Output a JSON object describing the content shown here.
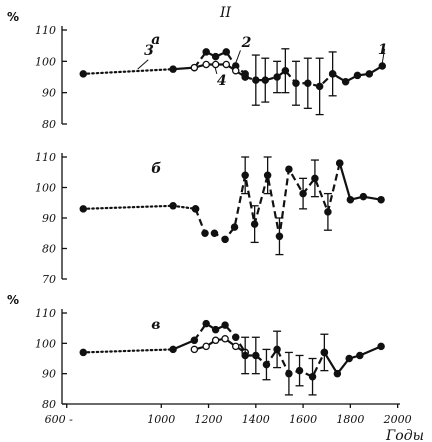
{
  "figure": {
    "title": "II",
    "x_unit": "Годы"
  },
  "chart_data": {
    "type": "line",
    "x_ticks": [
      600,
      1000,
      1200,
      1400,
      1600,
      1800,
      2000
    ],
    "x_tick_labels": [
      "600 -",
      "1000",
      "1200",
      "1400",
      "1600",
      "1800",
      "2000"
    ],
    "xlim": [
      580,
      2010
    ],
    "xlabel": "Годы",
    "ink_color": "#111111",
    "panels": [
      {
        "label": "а",
        "ylabel": "%",
        "ylim": [
          80,
          110
        ],
        "y_ticks": [
          80,
          90,
          100,
          110
        ],
        "curve_labels": [
          "1",
          "2",
          "3",
          "4"
        ],
        "series": [
          {
            "name": "3",
            "style": "dotted",
            "marker": "filled",
            "points": [
              [
                670,
                96
              ],
              [
                1050,
                97.5
              ]
            ]
          },
          {
            "name": "3 (join)",
            "style": "solid",
            "marker": "none",
            "points": [
              [
                1050,
                97.5
              ],
              [
                1140,
                98
              ]
            ]
          },
          {
            "name": "2",
            "style": "dashed",
            "marker": "filled",
            "points": [
              [
                1140,
                98
              ],
              [
                1190,
                103
              ],
              [
                1230,
                101.5
              ],
              [
                1275,
                103
              ],
              [
                1315,
                98.5
              ],
              [
                1355,
                96
              ]
            ]
          },
          {
            "name": "4",
            "style": "solid",
            "marker": "open",
            "points": [
              [
                1140,
                98
              ],
              [
                1190,
                99
              ],
              [
                1230,
                99
              ],
              [
                1275,
                99
              ],
              [
                1315,
                97
              ],
              [
                1355,
                95
              ]
            ]
          },
          {
            "name": "2 (errors)",
            "style": "dashed",
            "marker": "filled",
            "points": [
              [
                1355,
                95
              ],
              [
                1400,
                94
              ],
              [
                1440,
                94
              ],
              [
                1490,
                95
              ],
              [
                1525,
                97
              ],
              [
                1570,
                93
              ],
              [
                1620,
                93
              ],
              [
                1670,
                92
              ],
              [
                1725,
                96
              ]
            ],
            "errors": [
              null,
              8,
              7,
              5,
              7,
              7,
              8,
              9,
              7
            ]
          },
          {
            "name": "1",
            "style": "solid",
            "marker": "filled",
            "points": [
              [
                1725,
                96
              ],
              [
                1780,
                93.5
              ],
              [
                1830,
                95.5
              ],
              [
                1880,
                96
              ],
              [
                1935,
                98.5
              ]
            ]
          }
        ]
      },
      {
        "label": "б",
        "ylabel": "",
        "ylim": [
          70,
          110
        ],
        "y_ticks": [
          70,
          80,
          90,
          100,
          110
        ],
        "series": [
          {
            "name": "dotted",
            "style": "dotted",
            "marker": "filled",
            "points": [
              [
                670,
                93
              ],
              [
                1050,
                94
              ],
              [
                1145,
                93
              ]
            ]
          },
          {
            "name": "dashed",
            "style": "dashed",
            "marker": "filled",
            "points": [
              [
                1145,
                93
              ],
              [
                1185,
                85
              ],
              [
                1225,
                85
              ],
              [
                1270,
                83
              ],
              [
                1310,
                87
              ],
              [
                1355,
                104
              ],
              [
                1395,
                88
              ],
              [
                1450,
                104
              ],
              [
                1500,
                84
              ],
              [
                1540,
                106
              ],
              [
                1600,
                98
              ],
              [
                1650,
                103
              ],
              [
                1705,
                92
              ],
              [
                1755,
                108
              ]
            ],
            "errors": [
              null,
              null,
              null,
              null,
              null,
              6,
              6,
              6,
              6,
              null,
              5,
              6,
              6,
              null
            ]
          },
          {
            "name": "solid",
            "style": "solid",
            "marker": "filled",
            "points": [
              [
                1755,
                108
              ],
              [
                1800,
                96
              ],
              [
                1855,
                97
              ],
              [
                1930,
                96
              ]
            ]
          }
        ]
      },
      {
        "label": "в",
        "ylabel": "%",
        "ylim": [
          80,
          110
        ],
        "y_ticks": [
          80,
          90,
          100,
          110
        ],
        "series": [
          {
            "name": "dotted",
            "style": "dotted",
            "marker": "filled",
            "points": [
              [
                670,
                97
              ],
              [
                1050,
                98
              ]
            ]
          },
          {
            "name": "solid join",
            "style": "solid",
            "marker": "none",
            "points": [
              [
                1050,
                98
              ],
              [
                1140,
                101
              ]
            ]
          },
          {
            "name": "upper",
            "style": "dashed",
            "marker": "filled",
            "points": [
              [
                1140,
                101
              ],
              [
                1190,
                106.5
              ],
              [
                1230,
                104.5
              ],
              [
                1270,
                106
              ],
              [
                1315,
                102
              ],
              [
                1355,
                97
              ]
            ]
          },
          {
            "name": "lower",
            "style": "solid",
            "marker": "open",
            "points": [
              [
                1140,
                98
              ],
              [
                1190,
                99
              ],
              [
                1230,
                101
              ],
              [
                1270,
                101.5
              ],
              [
                1315,
                99
              ],
              [
                1355,
                97
              ]
            ]
          },
          {
            "name": "dashed errors",
            "style": "dashed",
            "marker": "filled",
            "points": [
              [
                1355,
                96
              ],
              [
                1400,
                96
              ],
              [
                1445,
                93
              ],
              [
                1490,
                98
              ],
              [
                1540,
                90
              ],
              [
                1585,
                91
              ],
              [
                1640,
                89
              ],
              [
                1690,
                97
              ]
            ],
            "errors": [
              6,
              6,
              5,
              6,
              7,
              5,
              6,
              6
            ]
          },
          {
            "name": "solid end",
            "style": "solid",
            "marker": "filled",
            "points": [
              [
                1690,
                97
              ],
              [
                1745,
                90
              ],
              [
                1795,
                95
              ],
              [
                1840,
                96
              ],
              [
                1930,
                99
              ]
            ]
          }
        ]
      }
    ]
  }
}
